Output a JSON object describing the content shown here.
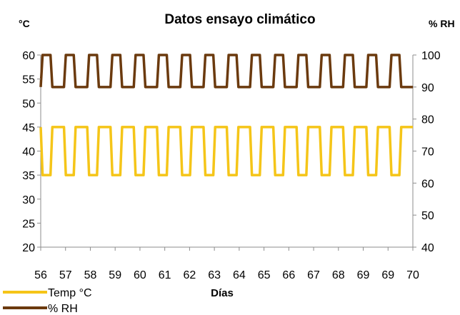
{
  "chart_data": {
    "type": "line",
    "title": "Datos ensayo climático",
    "y1_unit": "°C",
    "y2_unit": "% RH",
    "xlabel": "Días",
    "x_ticks": [
      "56",
      "57",
      "58",
      "59",
      "60",
      "61",
      "62",
      "63",
      "64",
      "65",
      "66",
      "67",
      "68",
      "69",
      "69",
      "70"
    ],
    "ylim_left": [
      20,
      60
    ],
    "yticks_left": [
      20,
      25,
      30,
      35,
      40,
      45,
      50,
      55,
      60
    ],
    "ylim_right": [
      40,
      100
    ],
    "yticks_right": [
      40,
      50,
      60,
      70,
      80,
      90,
      100
    ],
    "grid": false,
    "legend_position": "bottom-left",
    "series": [
      {
        "name": "Temp °C",
        "axis": "left",
        "color": "#F5C518",
        "pattern": "cyclic square wave between 35 and 45 °C, 16 cycles over the period",
        "start_value": 45,
        "high": 45,
        "low": 35
      },
      {
        "name": "% RH",
        "axis": "right",
        "color": "#6B3A0E",
        "pattern": "cyclic square wave between 90 and 100 % RH, 16 cycles over the period",
        "start_value": 90,
        "high": 100,
        "low": 90
      }
    ]
  }
}
